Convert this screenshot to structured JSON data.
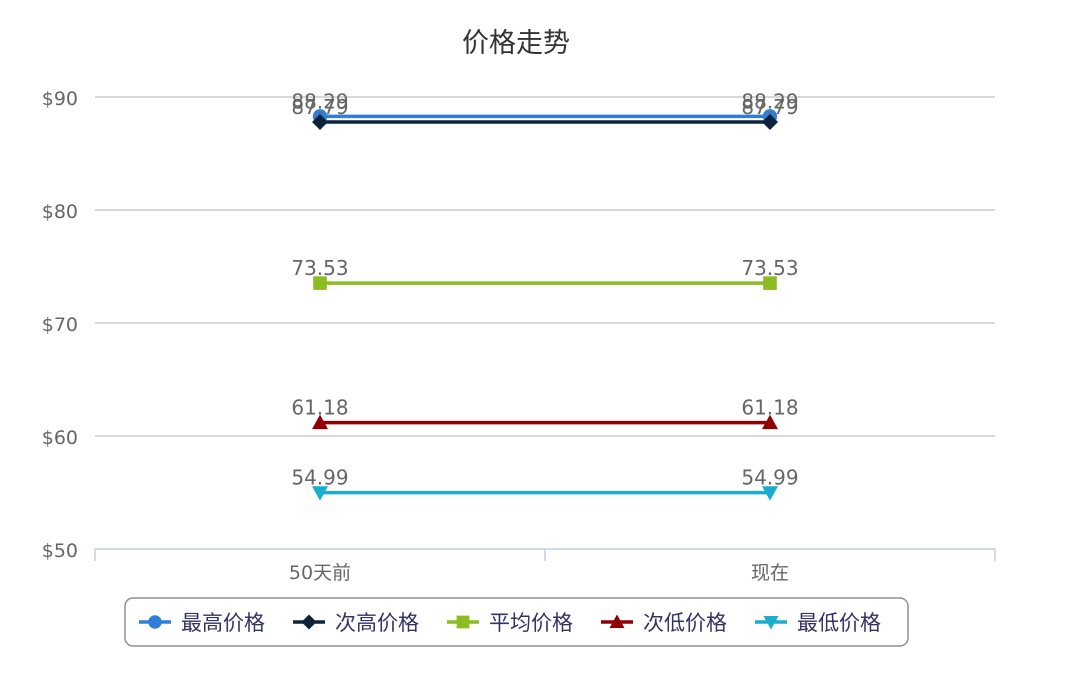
{
  "chart_data": {
    "type": "line",
    "title": "价格走势",
    "categories": [
      "50天前",
      "现在"
    ],
    "ylim": [
      50,
      90
    ],
    "yticks": [
      50,
      60,
      70,
      80,
      90
    ],
    "ytick_labels": [
      "$50",
      "$60",
      "$70",
      "$80",
      "$90"
    ],
    "grid": true,
    "legend_position": "bottom",
    "series": [
      {
        "name": "最高价格",
        "values": [
          88.29,
          88.29
        ],
        "color": "#2f7ed8",
        "marker": "circle"
      },
      {
        "name": "次高价格",
        "values": [
          87.79,
          87.79
        ],
        "color": "#0d233a",
        "marker": "diamond"
      },
      {
        "name": "平均价格",
        "values": [
          73.53,
          73.53
        ],
        "color": "#8bbc21",
        "marker": "square"
      },
      {
        "name": "次低价格",
        "values": [
          61.18,
          61.18
        ],
        "color": "#910000",
        "marker": "triangle"
      },
      {
        "name": "最低价格",
        "values": [
          54.99,
          54.99
        ],
        "color": "#1aadce",
        "marker": "triangle-down"
      }
    ]
  }
}
